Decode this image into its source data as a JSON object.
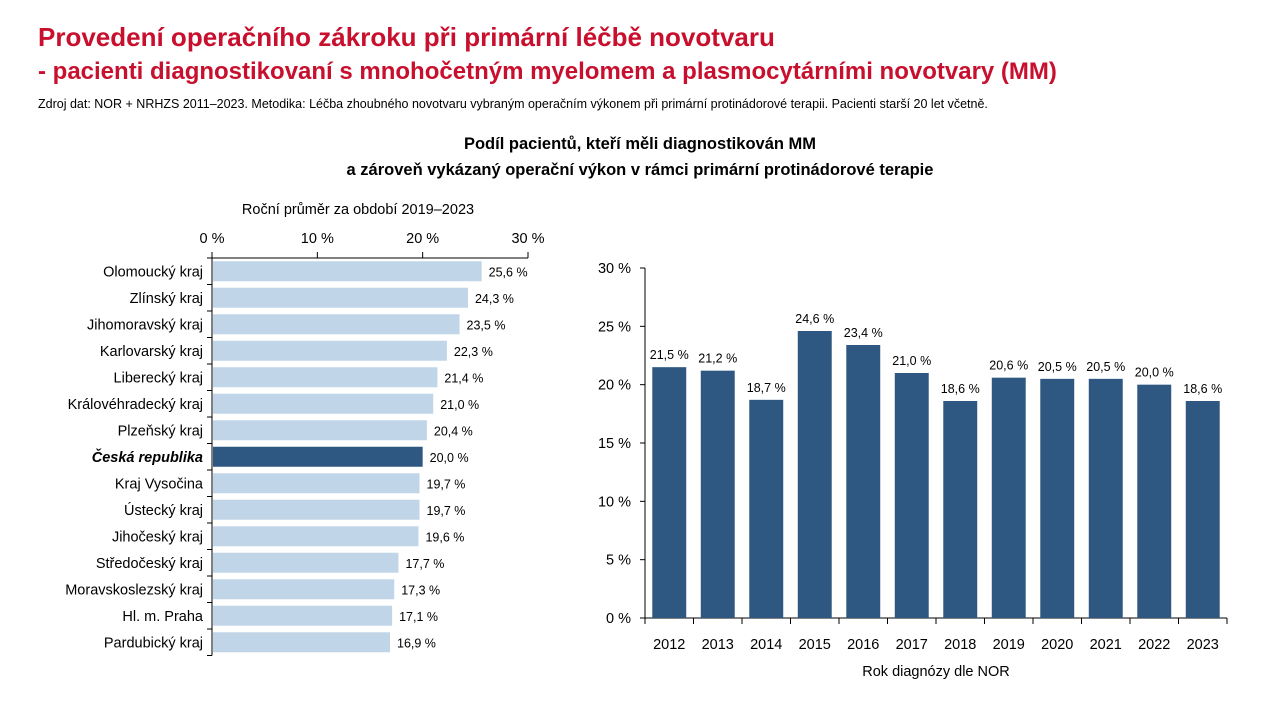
{
  "header": {
    "title": "Provedení operačního zákroku při primární léčbě novotvaru",
    "subtitle": "- pacienti diagnostikovaní s mnohočetným myelomem a plasmocytárními novotvary (MM)",
    "source": "Zdroj dat: NOR + NRHZS 2011–2023. Metodika: Léčba zhoubného novotvaru vybraným operačním výkonem při primární protinádorové terapii. Pacienti starší 20 let včetně."
  },
  "chart_title": {
    "line1": "Podíl pacientů, kteří měli diagnostikován MM",
    "line2": "a zároveň vykázaný operační výkon v rámci primární protinádorové terapie"
  },
  "colors": {
    "title_red": "#c8102e",
    "bar_light": "#c0d5e8",
    "bar_dark": "#2e5881"
  },
  "chart_data": [
    {
      "type": "bar",
      "orientation": "horizontal",
      "xlabel": "Roční průměr za období 2019–2023",
      "xlim": [
        0,
        30
      ],
      "ticks": [
        "0 %",
        "10 %",
        "20 %",
        "30 %"
      ],
      "tick_values": [
        0,
        10,
        20,
        30
      ],
      "axis_position": "top",
      "categories": [
        "Olomoucký kraj",
        "Zlínský kraj",
        "Jihomoravský kraj",
        "Karlovarský kraj",
        "Liberecký kraj",
        "Královéhradecký kraj",
        "Plzeňský kraj",
        "Česká republika",
        "Kraj Vysočina",
        "Ústecký kraj",
        "Jihočeský kraj",
        "Středočeský kraj",
        "Moravskoslezský kraj",
        "Hl. m. Praha",
        "Pardubický kraj"
      ],
      "values": [
        25.6,
        24.3,
        23.5,
        22.3,
        21.4,
        21.0,
        20.4,
        20.0,
        19.7,
        19.7,
        19.6,
        17.7,
        17.3,
        17.1,
        16.9
      ],
      "labels": [
        "25,6 %",
        "24,3 %",
        "23,5 %",
        "22,3 %",
        "21,4 %",
        "21,0 %",
        "20,4 %",
        "20,0 %",
        "19,7 %",
        "19,7 %",
        "19,6 %",
        "17,7 %",
        "17,3 %",
        "17,1 %",
        "16,9 %"
      ],
      "highlight": "Česká republika"
    },
    {
      "type": "bar",
      "orientation": "vertical",
      "xlabel": "Rok diagnózy dle NOR",
      "ylim": [
        0,
        30
      ],
      "ticks": [
        "0 %",
        "5 %",
        "10 %",
        "15 %",
        "20 %",
        "25 %",
        "30 %"
      ],
      "tick_values": [
        0,
        5,
        10,
        15,
        20,
        25,
        30
      ],
      "categories": [
        "2012",
        "2013",
        "2014",
        "2015",
        "2016",
        "2017",
        "2018",
        "2019",
        "2020",
        "2021",
        "2022",
        "2023"
      ],
      "values": [
        21.5,
        21.2,
        18.7,
        24.6,
        23.4,
        21.0,
        18.6,
        20.6,
        20.5,
        20.5,
        20.0,
        18.6
      ],
      "labels": [
        "21,5 %",
        "21,2 %",
        "18,7 %",
        "24,6 %",
        "23,4 %",
        "21,0 %",
        "18,6 %",
        "20,6 %",
        "20,5 %",
        "20,5 %",
        "20,0 %",
        "18,6 %"
      ]
    }
  ]
}
